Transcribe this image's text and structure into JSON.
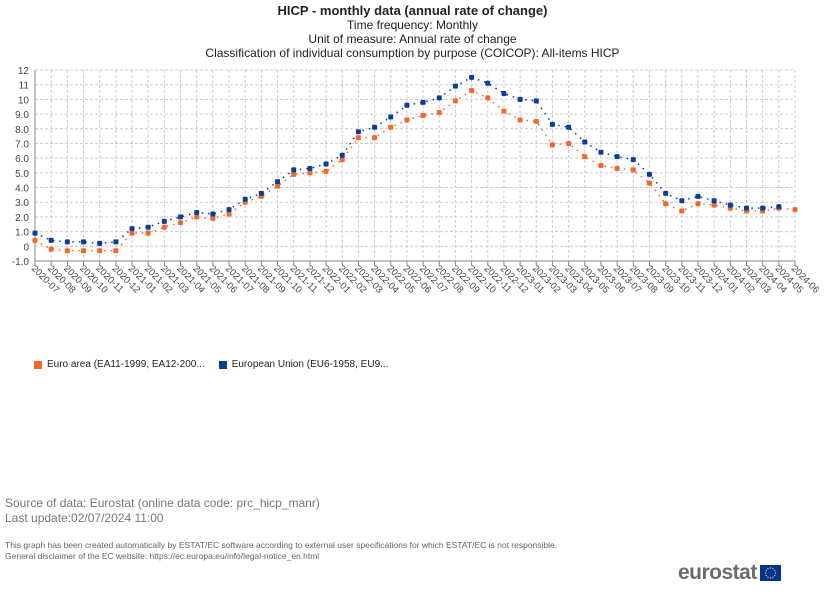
{
  "chart_data": {
    "type": "scatter",
    "title": "HICP - monthly data (annual rate of change)",
    "subtitles": [
      "Time frequency: Monthly",
      "Unit of measure: Annual rate of change",
      "Classification of individual consumption by purpose (COICOP): All-items HICP"
    ],
    "ylim": [
      -1,
      12
    ],
    "yticks": [
      "-1.0",
      "0",
      "1.0",
      "2.0",
      "3.0",
      "4.0",
      "5.0",
      "6.0",
      "7.0",
      "8.0",
      "9.0",
      "10",
      "11",
      "12"
    ],
    "grid": true,
    "legend_placement": "bottom-left",
    "categories": [
      "2020-07",
      "2020-08",
      "2020-09",
      "2020-10",
      "2020-11",
      "2020-12",
      "2021-01",
      "2021-02",
      "2021-03",
      "2021-04",
      "2021-05",
      "2021-06",
      "2021-07",
      "2021-08",
      "2021-09",
      "2021-10",
      "2021-11",
      "2021-12",
      "2022-01",
      "2022-02",
      "2022-03",
      "2022-04",
      "2022-05",
      "2022-06",
      "2022-07",
      "2022-08",
      "2022-09",
      "2022-10",
      "2022-11",
      "2022-12",
      "2023-01",
      "2023-02",
      "2023-03",
      "2023-04",
      "2023-05",
      "2023-06",
      "2023-07",
      "2023-08",
      "2023-09",
      "2023-10",
      "2023-11",
      "2023-12",
      "2024-01",
      "2024-02",
      "2024-03",
      "2024-04",
      "2024-05",
      "2024-06"
    ],
    "series": [
      {
        "name": "Euro area (EA11-1999, EA12-200...",
        "color": "#f4692a",
        "values": [
          0.4,
          -0.2,
          -0.3,
          -0.3,
          -0.3,
          -0.3,
          0.9,
          0.9,
          1.3,
          1.6,
          2.0,
          1.9,
          2.2,
          3.0,
          3.4,
          4.1,
          4.9,
          5.0,
          5.1,
          5.9,
          7.4,
          7.4,
          8.1,
          8.6,
          8.9,
          9.1,
          9.9,
          10.6,
          10.1,
          9.2,
          8.6,
          8.5,
          6.9,
          7.0,
          6.1,
          5.5,
          5.3,
          5.2,
          4.3,
          2.9,
          2.4,
          2.9,
          2.8,
          2.6,
          2.4,
          2.4,
          2.6,
          2.5
        ]
      },
      {
        "name": "European Union (EU6-1958, EU9...",
        "color": "#0b3d9c",
        "values": [
          0.9,
          0.4,
          0.3,
          0.3,
          0.2,
          0.3,
          1.2,
          1.3,
          1.7,
          2.0,
          2.3,
          2.2,
          2.5,
          3.2,
          3.6,
          4.4,
          5.2,
          5.3,
          5.6,
          6.2,
          7.8,
          8.1,
          8.8,
          9.6,
          9.8,
          10.1,
          10.9,
          11.5,
          11.1,
          10.4,
          10.0,
          9.9,
          8.3,
          8.1,
          7.1,
          6.4,
          6.1,
          5.9,
          4.9,
          3.6,
          3.1,
          3.4,
          3.1,
          2.8,
          2.6,
          2.6,
          2.7,
          null
        ]
      }
    ]
  },
  "footer": {
    "source": "Source of data: Eurostat (online data code: prc_hicp_manr)",
    "last_update": "Last update:02/07/2024 11:00",
    "disclaimer1": "This graph has been created automatically by ESTAT/EC software according to external user specifications for which ESTAT/EC is not responsible.",
    "disclaimer2": "General disclaimer of the EC website: https://ec.europa.eu/info/legal-notice_en.html",
    "logo": "eurostat"
  }
}
